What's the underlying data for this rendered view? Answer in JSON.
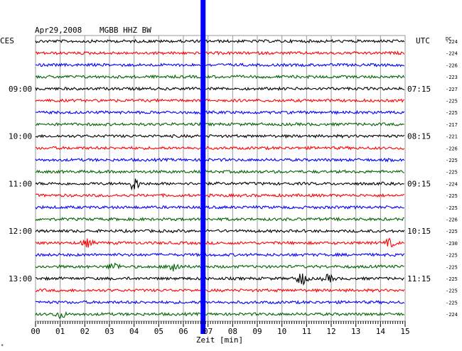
{
  "header": {
    "date": "Apr29,2008",
    "station": "MGBB HHZ BW",
    "left_tz": "CES",
    "right_tz": "UTC",
    "dc_label": "DC"
  },
  "chart_data": {
    "type": "line",
    "title": "Apr29,2008  MGBB HHZ BW",
    "xlabel": "Zeit [min]",
    "xlim": [
      0,
      15
    ],
    "x_ticks": [
      "00",
      "01",
      "02",
      "03",
      "04",
      "05",
      "06",
      "07",
      "08",
      "09",
      "10",
      "11",
      "12",
      "13",
      "14",
      "15"
    ],
    "row_interval_min": 15,
    "left_time_labels": [
      {
        "row": 4,
        "label": "09:00"
      },
      {
        "row": 8,
        "label": "10:00"
      },
      {
        "row": 12,
        "label": "11:00"
      },
      {
        "row": 16,
        "label": "12:00"
      },
      {
        "row": 20,
        "label": "13:00"
      }
    ],
    "right_time_labels": [
      {
        "row": 4,
        "label": "07:15"
      },
      {
        "row": 8,
        "label": "08:15"
      },
      {
        "row": 12,
        "label": "09:15"
      },
      {
        "row": 16,
        "label": "10:15"
      },
      {
        "row": 20,
        "label": "11:15"
      }
    ],
    "dc_offsets": [
      -224,
      -224,
      -226,
      -223,
      -227,
      -225,
      -225,
      -217,
      -221,
      -226,
      -225,
      -225,
      -224,
      -225,
      -225,
      -226,
      -225,
      -230,
      -225,
      -225,
      -225,
      -225,
      -225,
      -224
    ],
    "trace_colors": [
      "#000000",
      "#ff0000",
      "#0000ff",
      "#006400"
    ],
    "events": [
      {
        "row": 12,
        "minute": 4.0,
        "amplitude": "medium"
      },
      {
        "row": 17,
        "minute": 2.1,
        "amplitude": "small"
      },
      {
        "row": 17,
        "minute": 14.4,
        "amplitude": "small"
      },
      {
        "row": 19,
        "minute": 3.2,
        "amplitude": "small"
      },
      {
        "row": 19,
        "minute": 5.6,
        "amplitude": "medium"
      },
      {
        "row": 20,
        "minute": 10.8,
        "amplitude": "medium"
      },
      {
        "row": 20,
        "minute": 11.9,
        "amplitude": "small"
      },
      {
        "row": 23,
        "minute": 1.0,
        "amplitude": "small"
      }
    ],
    "marker_line": {
      "minute": 6.8,
      "color": "#0000ff"
    },
    "grid": true
  },
  "footnote": "*"
}
